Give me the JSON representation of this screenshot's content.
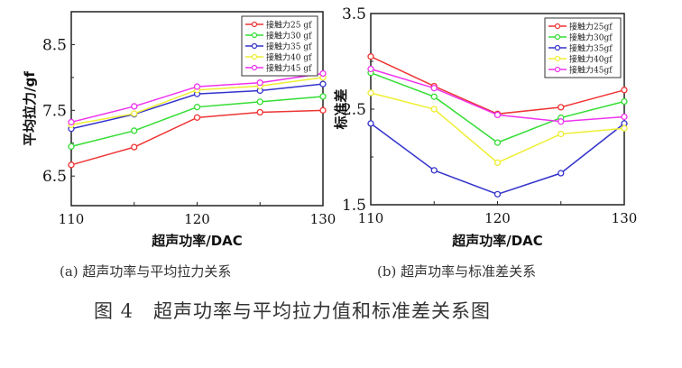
{
  "chart_data": [
    {
      "type": "line",
      "id": "a",
      "title": "",
      "xlabel": "超声功率/DAC",
      "ylabel": "平均拉力/gf",
      "x": [
        110,
        115,
        120,
        125,
        130
      ],
      "xticks": [
        "110",
        "120",
        "130"
      ],
      "yticks": [
        "6.5",
        "7.5",
        "8.5"
      ],
      "xlim": [
        110,
        130
      ],
      "ylim": [
        6.05,
        9.0
      ],
      "legend_position": "top-right",
      "series": [
        {
          "name": "接触力25 gf",
          "color": "#ee3333",
          "values": [
            6.67,
            6.94,
            7.39,
            7.47,
            7.5
          ]
        },
        {
          "name": "接触力30 gf",
          "color": "#33dd33",
          "values": [
            6.95,
            7.19,
            7.55,
            7.63,
            7.71
          ]
        },
        {
          "name": "接触力35 gf",
          "color": "#3333cc",
          "values": [
            7.22,
            7.44,
            7.75,
            7.8,
            7.9
          ]
        },
        {
          "name": "接触力40 gf",
          "color": "#eeee33",
          "values": [
            7.28,
            7.45,
            7.81,
            7.87,
            8.0
          ]
        },
        {
          "name": "接触力45 gf",
          "color": "#ee33ee",
          "values": [
            7.32,
            7.56,
            7.86,
            7.92,
            8.06
          ]
        }
      ],
      "caption": "(a) 超声功率与平均拉力关系"
    },
    {
      "type": "line",
      "id": "b",
      "title": "",
      "xlabel": "超声功率/DAC",
      "ylabel": "标准差",
      "x": [
        110,
        115,
        120,
        125,
        130
      ],
      "xticks": [
        "110",
        "120",
        "130"
      ],
      "yticks": [
        "1.5",
        "2.5",
        "3.5"
      ],
      "xlim": [
        110,
        130
      ],
      "ylim": [
        1.5,
        3.5
      ],
      "legend_position": "top-right",
      "series": [
        {
          "name": "接触力25gf",
          "color": "#ee3333",
          "values": [
            3.05,
            2.74,
            2.45,
            2.52,
            2.7
          ]
        },
        {
          "name": "接触力30gf",
          "color": "#33dd33",
          "values": [
            2.88,
            2.63,
            2.15,
            2.41,
            2.58
          ]
        },
        {
          "name": "接触力35gf",
          "color": "#3333cc",
          "values": [
            2.35,
            1.86,
            1.61,
            1.83,
            2.35
          ]
        },
        {
          "name": "接触力40gf",
          "color": "#eeee33",
          "values": [
            2.67,
            2.5,
            1.94,
            2.24,
            2.3
          ]
        },
        {
          "name": "接触力45gf",
          "color": "#ee33ee",
          "values": [
            2.92,
            2.72,
            2.44,
            2.37,
            2.42
          ]
        }
      ],
      "caption": "(b) 超声功率与标准差关系"
    }
  ],
  "figure_title": "图 4　超声功率与平均拉力值和标准差关系图"
}
